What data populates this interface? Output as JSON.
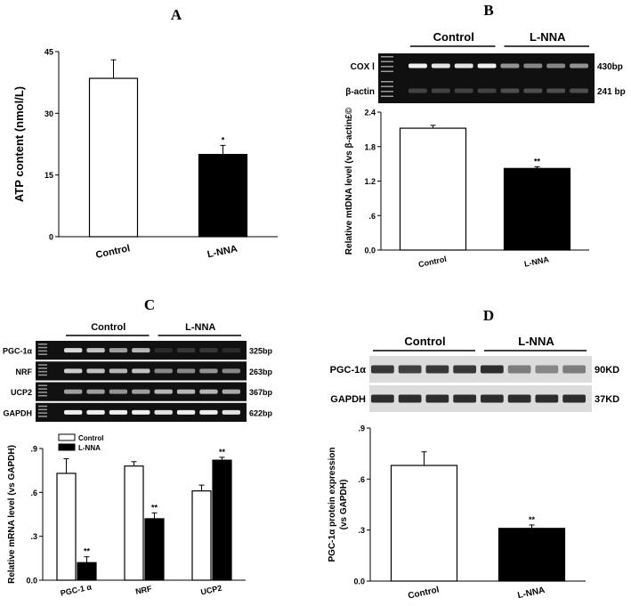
{
  "chart_data": [
    {
      "panel": "A",
      "type": "bar",
      "categories": [
        "Control",
        "L-NNA"
      ],
      "values": [
        38.5,
        20.0
      ],
      "errors": [
        4.5,
        2.2
      ],
      "significance": [
        "",
        "*"
      ],
      "ylabel": "ATP content (nmol/L)",
      "ylim": [
        0,
        45
      ],
      "yticks": [
        "0",
        "15",
        "30",
        "45"
      ],
      "bar_colors": [
        "#ffffff",
        "#000000"
      ]
    },
    {
      "panel": "B",
      "type": "bar",
      "categories": [
        "Control",
        "L-NNA"
      ],
      "values": [
        2.12,
        1.42
      ],
      "errors": [
        0.05,
        0.03
      ],
      "significance": [
        "",
        "**"
      ],
      "ylabel": "Relative mtDNA level (vs β-actin£©",
      "ylim": [
        0,
        2.4
      ],
      "yticks": [
        "0.0",
        ".6",
        "1.2",
        "1.8",
        "2.4"
      ],
      "bar_colors": [
        "#ffffff",
        "#000000"
      ],
      "gel": {
        "groups": [
          "Control",
          "L-NNA"
        ],
        "rows": [
          {
            "label": "COX Ⅰ",
            "size": "430bp"
          },
          {
            "label": "β-actin",
            "size": "241 bp"
          }
        ]
      }
    },
    {
      "panel": "C",
      "type": "bar",
      "categories": [
        "PGC-1 α",
        "NRF",
        "UCP2"
      ],
      "series": [
        {
          "name": "Control",
          "values": [
            0.73,
            0.78,
            0.61
          ],
          "errors": [
            0.1,
            0.03,
            0.04
          ],
          "color": "#ffffff"
        },
        {
          "name": "L-NNA",
          "values": [
            0.12,
            0.42,
            0.82
          ],
          "errors": [
            0.04,
            0.04,
            0.02
          ],
          "color": "#000000"
        }
      ],
      "significance": [
        [
          "",
          "**"
        ],
        [
          "",
          "**"
        ],
        [
          "",
          "**"
        ]
      ],
      "ylabel": "Relative mRNA level (vs GAPDH)",
      "ylim": [
        0,
        0.9
      ],
      "yticks": [
        "0.0",
        ".3",
        ".6",
        ".9"
      ],
      "legend_position": "top-left",
      "gel": {
        "groups": [
          "Control",
          "L-NNA"
        ],
        "rows": [
          {
            "label": "PGC-1α",
            "size": "325bp"
          },
          {
            "label": "NRF",
            "size": "263bp"
          },
          {
            "label": "UCP2",
            "size": "367bp"
          },
          {
            "label": "GAPDH",
            "size": "622bp"
          }
        ]
      }
    },
    {
      "panel": "D",
      "type": "bar",
      "categories": [
        "Control",
        "L-NNA"
      ],
      "values": [
        0.68,
        0.31
      ],
      "errors": [
        0.08,
        0.02
      ],
      "significance": [
        "",
        "**"
      ],
      "ylabel": "PGC-1α protein expression (vs GAPDH)",
      "ylabel_lines": [
        "PGC-1α protein expression",
        "(vs GAPDH)"
      ],
      "ylim": [
        0,
        0.9
      ],
      "yticks": [
        "0.0",
        ".3",
        ".6",
        ".9"
      ],
      "bar_colors": [
        "#ffffff",
        "#000000"
      ],
      "blot": {
        "groups": [
          "Control",
          "L-NNA"
        ],
        "rows": [
          {
            "label": "PGC-1α",
            "size": "90KD"
          },
          {
            "label": "GAPDH",
            "size": "37KD"
          }
        ]
      }
    }
  ],
  "panel_letters": [
    "A",
    "B",
    "C",
    "D"
  ]
}
